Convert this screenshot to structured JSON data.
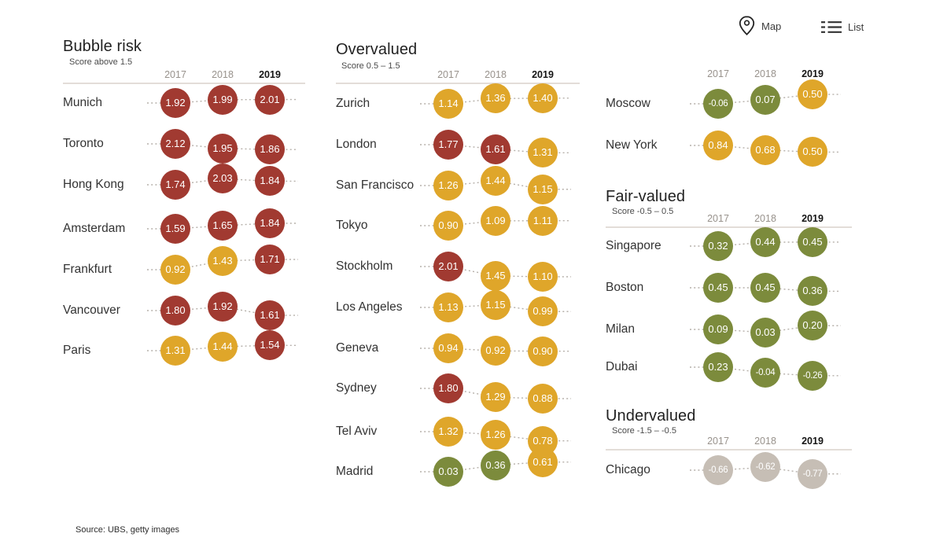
{
  "view_controls": {
    "map": {
      "label": "Map"
    },
    "list": {
      "label": "List"
    }
  },
  "source_note": "Source: UBS, getty images",
  "chart_data": {
    "type": "table",
    "years": [
      "2017",
      "2018",
      "2019"
    ],
    "highlight_year": "2019",
    "score_bands": [
      {
        "name": "Bubble risk",
        "range": "above 1.5",
        "min": 1.5,
        "color": "#a13a31"
      },
      {
        "name": "Overvalued",
        "range": "0.5 – 1.5",
        "min": 0.5,
        "color": "#dfa62a"
      },
      {
        "name": "Fair-valued",
        "range": "-0.5 – 0.5",
        "min": -0.5,
        "color": "#7c8b3c"
      },
      {
        "name": "Undervalued",
        "range": "-1.5 – -0.5",
        "min": -1.5,
        "color": "#c6beb5"
      }
    ],
    "circle_text_color": "#ffffff",
    "dotted_line_color": "#b6b0aa",
    "sections": [
      {
        "title": "Bubble risk",
        "subtitle": "Score above 1.5",
        "rows": [
          {
            "city": "Munich",
            "values": [
              1.92,
              1.99,
              2.01
            ]
          },
          {
            "city": "Toronto",
            "values": [
              2.12,
              1.95,
              1.86
            ]
          },
          {
            "city": "Hong Kong",
            "values": [
              1.74,
              2.03,
              1.84
            ]
          },
          {
            "city": "Amsterdam",
            "values": [
              1.59,
              1.65,
              1.84
            ]
          },
          {
            "city": "Frankfurt",
            "values": [
              0.92,
              1.43,
              1.71
            ]
          },
          {
            "city": "Vancouver",
            "values": [
              1.8,
              1.92,
              1.61
            ]
          },
          {
            "city": "Paris",
            "values": [
              1.31,
              1.44,
              1.54
            ]
          }
        ]
      },
      {
        "title": "Overvalued",
        "subtitle": "Score 0.5 – 1.5",
        "rows": [
          {
            "city": "Zurich",
            "values": [
              1.14,
              1.36,
              1.4
            ]
          },
          {
            "city": "London",
            "values": [
              1.77,
              1.61,
              1.31
            ]
          },
          {
            "city": "San Francisco",
            "values": [
              1.26,
              1.44,
              1.15
            ]
          },
          {
            "city": "Tokyo",
            "values": [
              0.9,
              1.09,
              1.11
            ]
          },
          {
            "city": "Stockholm",
            "values": [
              2.01,
              1.45,
              1.1
            ]
          },
          {
            "city": "Los Angeles",
            "values": [
              1.13,
              1.15,
              0.99
            ]
          },
          {
            "city": "Geneva",
            "values": [
              0.94,
              0.92,
              0.9
            ]
          },
          {
            "city": "Sydney",
            "values": [
              1.8,
              1.29,
              0.88
            ]
          },
          {
            "city": "Tel Aviv",
            "values": [
              1.32,
              1.26,
              0.78
            ]
          },
          {
            "city": "Madrid",
            "values": [
              0.03,
              0.36,
              0.61
            ]
          }
        ]
      },
      {
        "title": "",
        "subtitle": "",
        "rows": [
          {
            "city": "Moscow",
            "values": [
              -0.06,
              0.07,
              0.5
            ]
          },
          {
            "city": "New York",
            "values": [
              0.84,
              0.68,
              0.5
            ]
          }
        ]
      },
      {
        "title": "Fair-valued",
        "subtitle": "Score -0.5 – 0.5",
        "rows": [
          {
            "city": "Singapore",
            "values": [
              0.32,
              0.44,
              0.45
            ]
          },
          {
            "city": "Boston",
            "values": [
              0.45,
              0.45,
              0.36
            ]
          },
          {
            "city": "Milan",
            "values": [
              0.09,
              0.03,
              0.2
            ]
          },
          {
            "city": "Dubai",
            "values": [
              0.23,
              -0.04,
              -0.26
            ]
          }
        ]
      },
      {
        "title": "Undervalued",
        "subtitle": "Score -1.5 – -0.5",
        "rows": [
          {
            "city": "Chicago",
            "values": [
              -0.66,
              -0.62,
              -0.77
            ]
          }
        ]
      }
    ]
  }
}
